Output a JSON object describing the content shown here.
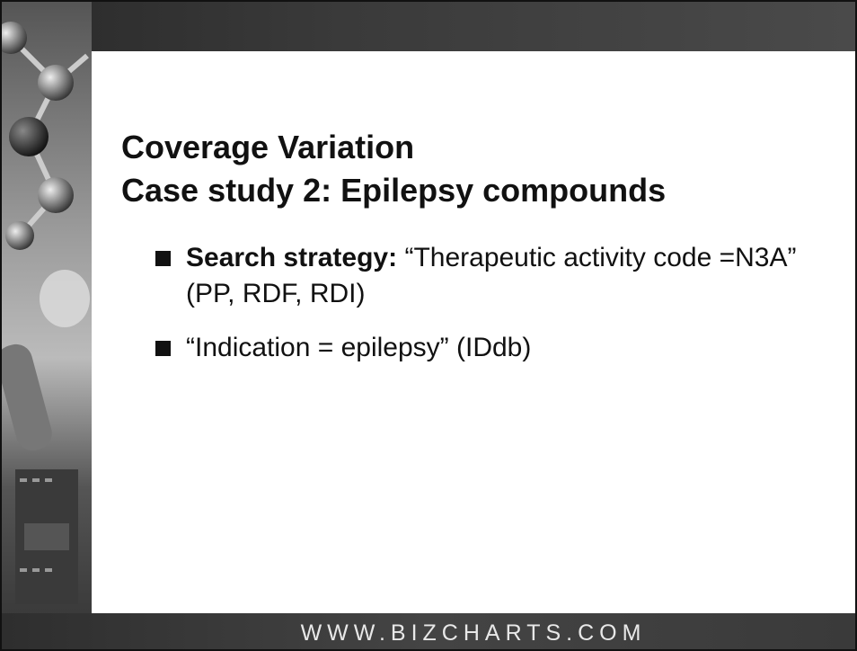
{
  "title": {
    "line1": "Coverage Variation",
    "line2": "Case study 2: Epilepsy compounds"
  },
  "bullets": [
    {
      "label": "Search strategy:",
      "text": "“Therapeutic activity code =N3A” (PP, RDF, RDI)"
    },
    {
      "text": "“Indication = epilepsy” (IDdb)"
    }
  ],
  "footer": "WWW.BIZCHARTS.COM"
}
